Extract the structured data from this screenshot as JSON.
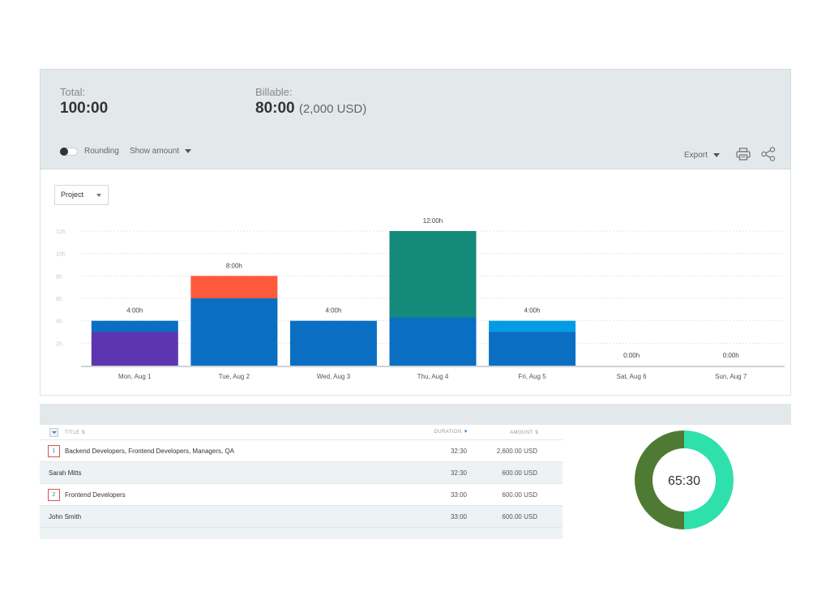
{
  "summary": {
    "total_label": "Total:",
    "total_value": "100:00",
    "billable_label": "Billable:",
    "billable_value": "80:00",
    "billable_amount": "(2,000 USD)"
  },
  "toolbar": {
    "rounding_label": "Rounding",
    "rounding_on": false,
    "show_amount_label": "Show amount",
    "export_label": "Export"
  },
  "chart_controls": {
    "group_by_selected": "Project"
  },
  "chart_data": {
    "type": "bar",
    "stacked": true,
    "categories": [
      "Mon, Aug 1",
      "Tue, Aug 2",
      "Wed, Aug 3",
      "Thu, Aug 4",
      "Fri, Aug 5",
      "Sat, Aug 6",
      "Sun, Aug 7"
    ],
    "totals_labels": [
      "4:00h",
      "8:00h",
      "4:00h",
      "12:00h",
      "4:00h",
      "0:00h",
      "0:00h"
    ],
    "yticks": [
      "2h",
      "4h",
      "6h",
      "8h",
      "10h",
      "12h"
    ],
    "ylim": [
      0,
      12
    ],
    "grid": true,
    "series": [
      {
        "color": "#5e35b1",
        "values": [
          3,
          0,
          0,
          0,
          0,
          0,
          0
        ]
      },
      {
        "color": "#0a6fc2",
        "values": [
          1,
          6,
          4,
          4.3,
          3,
          0,
          0
        ]
      },
      {
        "color": "#039be5",
        "values": [
          0,
          0,
          0,
          0,
          1,
          0,
          0
        ]
      },
      {
        "color": "#ff5a3c",
        "values": [
          0,
          2,
          0,
          0,
          0,
          0,
          0
        ]
      },
      {
        "color": "#138a7a",
        "values": [
          0,
          0,
          0,
          7.7,
          0,
          0,
          0
        ]
      }
    ]
  },
  "table": {
    "headers": {
      "title": "TITLE",
      "duration": "DURATION",
      "amount": "AMOUNT"
    },
    "rows": [
      {
        "kind": "group",
        "badge": "1",
        "title": "Backend Developers, Frontend Developers, Managers, QA",
        "duration": "32:30",
        "amount": "2,600.00 USD"
      },
      {
        "kind": "user",
        "title": "Sarah Mitts",
        "duration": "32:30",
        "amount": "600.00 USD"
      },
      {
        "kind": "group",
        "badge": "2",
        "title": "Frontend Developers",
        "duration": "33:00",
        "amount": "600.00 USD"
      },
      {
        "kind": "user",
        "title": "John Smith",
        "duration": "33:00",
        "amount": "600.00 USD"
      }
    ]
  },
  "donut": {
    "center_label": "65:30",
    "segments": [
      {
        "color": "#2ee0ac",
        "value": 50
      },
      {
        "color": "#4f7a34",
        "value": 50
      }
    ]
  },
  "icons": {
    "print": "print-icon",
    "share": "share-icon",
    "dropdown": "caret-down-icon",
    "sort": "sort-icon"
  }
}
